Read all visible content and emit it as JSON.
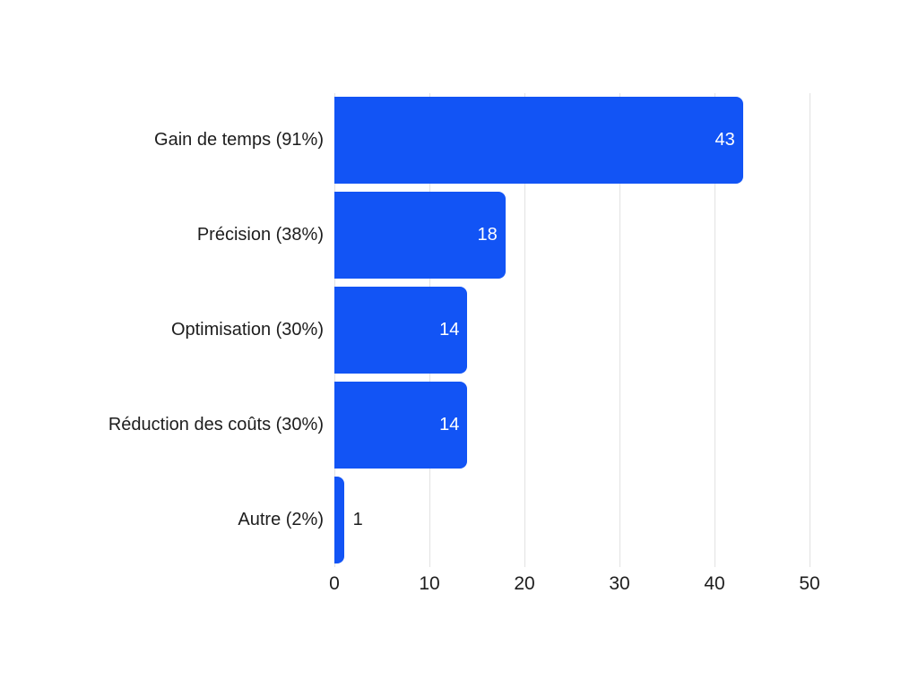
{
  "chart_data": {
    "type": "bar",
    "orientation": "horizontal",
    "title": "",
    "categories": [
      "Gain de temps (91%)",
      "Précision (38%)",
      "Optimisation (30%)",
      "Réduction des coûts (30%)",
      "Autre (2%)"
    ],
    "values": [
      43,
      18,
      14,
      14,
      1
    ],
    "value_labels": [
      "43",
      "18",
      "14",
      "14",
      "1"
    ],
    "x_ticks": [
      "0",
      "10",
      "20",
      "30",
      "40",
      "50"
    ],
    "x_tick_values": [
      0,
      10,
      20,
      30,
      40,
      50
    ],
    "xlim": [
      0,
      50
    ],
    "xlabel": "",
    "ylabel": "",
    "grid": true,
    "legend": false,
    "colors": {
      "bar": "#1254f5",
      "gridline": "#e2e2e2",
      "text": "#1d1d1d",
      "value_label_inside": "#ffffff",
      "value_label_outside": "#1d1d1d",
      "background": "#ffffff"
    }
  }
}
